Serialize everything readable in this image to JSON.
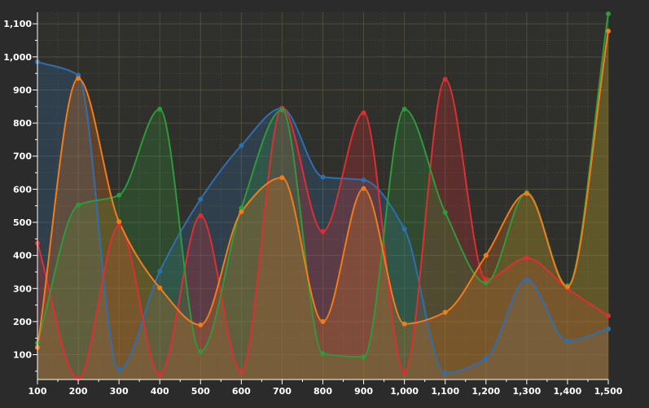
{
  "chart_data": {
    "type": "area",
    "curve": "smooth",
    "x": [
      100,
      200,
      300,
      400,
      500,
      600,
      700,
      800,
      900,
      1000,
      1100,
      1200,
      1300,
      1400,
      1500
    ],
    "x_tick_labels": [
      "100",
      "200",
      "300",
      "400",
      "500",
      "600",
      "700",
      "800",
      "900",
      "1,000",
      "1,100",
      "1,200",
      "1,300",
      "1,400",
      "1,500"
    ],
    "y_ticks": [
      100,
      200,
      300,
      400,
      500,
      600,
      700,
      800,
      900,
      1000,
      1100
    ],
    "y_tick_labels": [
      "100",
      "200",
      "300",
      "400",
      "500",
      "600",
      "700",
      "800",
      "900",
      "1,000",
      "1,100"
    ],
    "xlim": [
      100,
      1500
    ],
    "ylim": [
      25,
      1135
    ],
    "grid": true,
    "series": [
      {
        "color": "#2f6fb0",
        "values": [
          985,
          945,
          55,
          352,
          570,
          732,
          845,
          637,
          628,
          480,
          45,
          88,
          327,
          142,
          178
        ]
      },
      {
        "color": "#dc2f32",
        "values": [
          437,
          28,
          490,
          42,
          520,
          50,
          845,
          472,
          831,
          47,
          932,
          328,
          392,
          300,
          218
        ]
      },
      {
        "color": "#2f9a3a",
        "values": [
          135,
          552,
          582,
          842,
          110,
          543,
          840,
          103,
          93,
          842,
          530,
          317,
          590,
          308,
          1130
        ]
      },
      {
        "color": "#f17c1c",
        "values": [
          122,
          935,
          502,
          302,
          190,
          532,
          635,
          200,
          602,
          193,
          228,
          400,
          587,
          305,
          1078
        ]
      }
    ]
  }
}
